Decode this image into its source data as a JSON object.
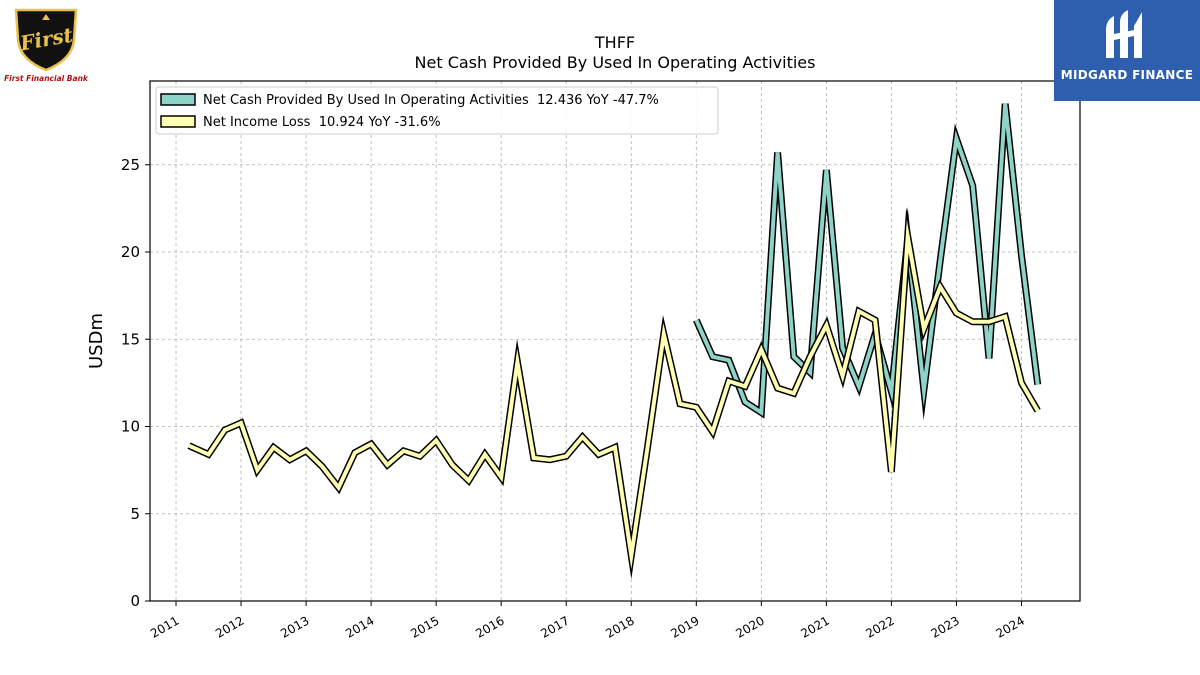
{
  "logos": {
    "left": {
      "icon": "first-financial-shield-logo",
      "mark_text": "First",
      "name": "First Financial Bank",
      "colors": {
        "shield": "#111111",
        "gold": "#e8c24a",
        "text": "#b01010"
      }
    },
    "right": {
      "icon": "midgard-m-logo",
      "name": "MIDGARD FINANCE",
      "colors": {
        "background": "#2d5fae",
        "mark": "#ffffff"
      }
    }
  },
  "chart_data": {
    "type": "line",
    "title": "THFF",
    "subtitle": "Net Cash Provided By Used In Operating Activities",
    "xlabel": "",
    "ylabel": "USDm",
    "xlim": [
      2010.6,
      2024.9
    ],
    "ylim": [
      0,
      29.8
    ],
    "x_ticks": [
      "2011",
      "2012",
      "2013",
      "2014",
      "2015",
      "2016",
      "2017",
      "2018",
      "2019",
      "2020",
      "2021",
      "2022",
      "2023",
      "2024"
    ],
    "y_ticks": [
      0,
      5,
      10,
      15,
      20,
      25
    ],
    "grid": true,
    "legend_position": "top-left",
    "series": [
      {
        "name": "Net Cash Provided By Used In Operating Activities  12.436 YoY -47.7%",
        "color": "#8dd3c7",
        "points": [
          [
            2019.0,
            16.1
          ],
          [
            2019.25,
            14.0
          ],
          [
            2019.5,
            13.8
          ],
          [
            2019.75,
            11.4
          ],
          [
            2020.0,
            10.8
          ],
          [
            2020.25,
            25.7
          ],
          [
            2020.5,
            14.0
          ],
          [
            2020.75,
            13.1
          ],
          [
            2021.0,
            24.7
          ],
          [
            2021.25,
            14.5
          ],
          [
            2021.5,
            12.3
          ],
          [
            2021.75,
            15.3
          ],
          [
            2022.0,
            12.0
          ],
          [
            2022.25,
            20.7
          ],
          [
            2022.5,
            12.1
          ],
          [
            2022.75,
            19.5
          ],
          [
            2023.0,
            26.5
          ],
          [
            2023.25,
            23.8
          ],
          [
            2023.5,
            13.9
          ],
          [
            2023.75,
            28.5
          ],
          [
            2024.0,
            19.8
          ],
          [
            2024.25,
            12.4
          ]
        ]
      },
      {
        "name": "Net Income Loss  10.924 YoY -31.6%",
        "color": "#ffffb3",
        "points": [
          [
            2011.2,
            8.9
          ],
          [
            2011.5,
            8.4
          ],
          [
            2011.75,
            9.8
          ],
          [
            2012.0,
            10.2
          ],
          [
            2012.25,
            7.5
          ],
          [
            2012.5,
            8.8
          ],
          [
            2012.75,
            8.1
          ],
          [
            2013.0,
            8.6
          ],
          [
            2013.25,
            7.7
          ],
          [
            2013.5,
            6.5
          ],
          [
            2013.75,
            8.5
          ],
          [
            2014.0,
            9.0
          ],
          [
            2014.25,
            7.8
          ],
          [
            2014.5,
            8.6
          ],
          [
            2014.75,
            8.3
          ],
          [
            2015.0,
            9.2
          ],
          [
            2015.25,
            7.8
          ],
          [
            2015.5,
            6.9
          ],
          [
            2015.75,
            8.4
          ],
          [
            2016.0,
            7.1
          ],
          [
            2016.25,
            13.7
          ],
          [
            2016.5,
            8.2
          ],
          [
            2016.75,
            8.1
          ],
          [
            2017.0,
            8.3
          ],
          [
            2017.25,
            9.4
          ],
          [
            2017.5,
            8.4
          ],
          [
            2017.75,
            8.8
          ],
          [
            2018.0,
            2.6
          ],
          [
            2018.25,
            8.8
          ],
          [
            2018.5,
            15.3
          ],
          [
            2018.75,
            11.3
          ],
          [
            2019.0,
            11.1
          ],
          [
            2019.25,
            9.7
          ],
          [
            2019.5,
            12.6
          ],
          [
            2019.75,
            12.3
          ],
          [
            2020.0,
            14.4
          ],
          [
            2020.25,
            12.2
          ],
          [
            2020.5,
            11.9
          ],
          [
            2020.75,
            14.0
          ],
          [
            2021.0,
            15.8
          ],
          [
            2021.25,
            12.9
          ],
          [
            2021.5,
            16.6
          ],
          [
            2021.75,
            16.1
          ],
          [
            2022.0,
            7.4
          ],
          [
            2022.25,
            20.9
          ],
          [
            2022.5,
            15.6
          ],
          [
            2022.75,
            18.0
          ],
          [
            2023.0,
            16.5
          ],
          [
            2023.25,
            16.0
          ],
          [
            2023.5,
            16.0
          ],
          [
            2023.75,
            16.3
          ],
          [
            2024.0,
            12.5
          ],
          [
            2024.25,
            10.9
          ]
        ]
      }
    ]
  }
}
